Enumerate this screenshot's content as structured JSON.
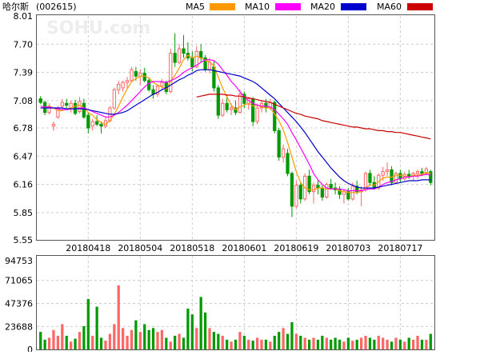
{
  "header": {
    "stock_name": "哈尔斯",
    "stock_code": "(002615)",
    "watermark": "SOHU.com"
  },
  "legend": [
    {
      "label": "MA5",
      "color": "#ff9900"
    },
    {
      "label": "MA10",
      "color": "#ff00ff"
    },
    {
      "label": "MA20",
      "color": "#0000cc"
    },
    {
      "label": "MA60",
      "color": "#cc0000"
    }
  ],
  "colors": {
    "up": "#ff6666",
    "down": "#009900",
    "grid": "#cccccc",
    "frame": "#555555"
  },
  "chart_data": [
    {
      "type": "candlestick",
      "y_ticks": [
        "8.01",
        "7.70",
        "7.39",
        "7.08",
        "6.78",
        "6.47",
        "6.16",
        "5.85",
        "5.55"
      ],
      "ylim": [
        5.55,
        8.01
      ],
      "x_ticks": [
        {
          "label": "20180418",
          "index": 11
        },
        {
          "label": "20180504",
          "index": 23
        },
        {
          "label": "20180518",
          "index": 35
        },
        {
          "label": "20180601",
          "index": 47
        },
        {
          "label": "20180619",
          "index": 59
        },
        {
          "label": "20180703",
          "index": 71
        },
        {
          "label": "20180717",
          "index": 83
        }
      ],
      "ohlc": [
        [
          7.1,
          7.13,
          7.04,
          7.06
        ],
        [
          7.06,
          7.08,
          6.92,
          6.95
        ],
        [
          6.95,
          7.05,
          6.93,
          7.02
        ],
        [
          6.8,
          6.85,
          6.75,
          6.82
        ],
        [
          6.9,
          7.02,
          6.88,
          7.0
        ],
        [
          7.02,
          7.1,
          6.98,
          7.06
        ],
        [
          7.05,
          7.1,
          7.0,
          7.03
        ],
        [
          7.0,
          7.08,
          6.95,
          7.05
        ],
        [
          7.05,
          7.09,
          6.92,
          6.94
        ],
        [
          6.96,
          7.12,
          6.94,
          7.07
        ],
        [
          7.05,
          7.1,
          6.88,
          6.9
        ],
        [
          6.92,
          6.95,
          6.72,
          6.78
        ],
        [
          6.8,
          6.88,
          6.75,
          6.85
        ],
        [
          6.85,
          6.92,
          6.8,
          6.82
        ],
        [
          6.82,
          6.85,
          6.72,
          6.8
        ],
        [
          6.8,
          6.9,
          6.78,
          6.86
        ],
        [
          6.86,
          7.02,
          6.84,
          7.0
        ],
        [
          7.0,
          7.22,
          6.98,
          7.2
        ],
        [
          7.2,
          7.3,
          7.15,
          7.26
        ],
        [
          7.22,
          7.3,
          7.18,
          7.28
        ],
        [
          7.28,
          7.34,
          7.22,
          7.3
        ],
        [
          7.3,
          7.45,
          7.28,
          7.42
        ],
        [
          7.4,
          7.45,
          7.3,
          7.35
        ],
        [
          7.35,
          7.42,
          7.25,
          7.38
        ],
        [
          7.38,
          7.44,
          7.28,
          7.3
        ],
        [
          7.3,
          7.33,
          7.18,
          7.2
        ],
        [
          7.2,
          7.25,
          7.1,
          7.15
        ],
        [
          7.15,
          7.26,
          7.12,
          7.24
        ],
        [
          7.24,
          7.32,
          7.2,
          7.28
        ],
        [
          7.28,
          7.3,
          7.15,
          7.18
        ],
        [
          7.18,
          7.65,
          7.16,
          7.6
        ],
        [
          7.6,
          7.82,
          7.45,
          7.5
        ],
        [
          7.5,
          7.7,
          7.48,
          7.65
        ],
        [
          7.65,
          7.8,
          7.55,
          7.6
        ],
        [
          7.6,
          7.72,
          7.52,
          7.55
        ],
        [
          7.55,
          7.62,
          7.4,
          7.45
        ],
        [
          7.45,
          7.68,
          7.44,
          7.62
        ],
        [
          7.62,
          7.7,
          7.5,
          7.55
        ],
        [
          7.55,
          7.58,
          7.4,
          7.42
        ],
        [
          7.42,
          7.55,
          7.38,
          7.5
        ],
        [
          7.45,
          7.52,
          7.18,
          7.22
        ],
        [
          7.22,
          7.25,
          6.88,
          6.92
        ],
        [
          6.92,
          7.1,
          6.9,
          7.05
        ],
        [
          7.05,
          7.15,
          6.95,
          6.98
        ],
        [
          6.98,
          7.05,
          6.92,
          7.0
        ],
        [
          7.0,
          7.08,
          6.92,
          6.95
        ],
        [
          6.95,
          7.2,
          6.94,
          7.15
        ],
        [
          7.15,
          7.18,
          7.0,
          7.05
        ],
        [
          7.05,
          7.12,
          6.98,
          7.1
        ],
        [
          7.1,
          7.12,
          6.8,
          6.85
        ],
        [
          6.85,
          7.05,
          6.82,
          7.0
        ],
        [
          7.0,
          7.08,
          6.95,
          7.05
        ],
        [
          7.05,
          7.1,
          6.95,
          7.0
        ],
        [
          7.0,
          7.1,
          6.98,
          7.06
        ],
        [
          7.06,
          7.08,
          6.72,
          6.75
        ],
        [
          6.75,
          6.78,
          6.42,
          6.46
        ],
        [
          6.46,
          6.6,
          6.4,
          6.55
        ],
        [
          6.5,
          6.55,
          6.25,
          6.28
        ],
        [
          6.28,
          6.3,
          5.8,
          5.92
        ],
        [
          5.92,
          6.2,
          5.9,
          6.15
        ],
        [
          6.15,
          6.18,
          5.95,
          6.0
        ],
        [
          6.0,
          6.28,
          5.98,
          6.25
        ],
        [
          6.25,
          6.32,
          6.05,
          6.08
        ],
        [
          6.08,
          6.18,
          5.95,
          6.15
        ],
        [
          6.15,
          6.2,
          6.05,
          6.12
        ],
        [
          6.12,
          6.15,
          5.98,
          6.02
        ],
        [
          6.02,
          6.18,
          6.0,
          6.16
        ],
        [
          6.16,
          6.22,
          6.1,
          6.12
        ],
        [
          6.12,
          6.18,
          6.05,
          6.1
        ],
        [
          6.1,
          6.14,
          6.0,
          6.05
        ],
        [
          6.05,
          6.1,
          5.95,
          6.08
        ],
        [
          6.08,
          6.12,
          5.98,
          6.0
        ],
        [
          6.0,
          6.18,
          5.98,
          6.14
        ],
        [
          6.14,
          6.2,
          6.05,
          6.08
        ],
        [
          6.08,
          6.14,
          5.92,
          6.1
        ],
        [
          6.1,
          6.3,
          6.08,
          6.28
        ],
        [
          6.28,
          6.32,
          6.15,
          6.18
        ],
        [
          6.18,
          6.25,
          6.1,
          6.12
        ],
        [
          6.12,
          6.28,
          6.1,
          6.26
        ],
        [
          6.26,
          6.35,
          6.2,
          6.3
        ],
        [
          6.3,
          6.4,
          6.25,
          6.32
        ],
        [
          6.32,
          6.36,
          6.15,
          6.18
        ],
        [
          6.18,
          6.3,
          6.16,
          6.28
        ],
        [
          6.28,
          6.32,
          6.18,
          6.22
        ],
        [
          6.22,
          6.3,
          6.2,
          6.27
        ],
        [
          6.27,
          6.32,
          6.22,
          6.25
        ],
        [
          6.25,
          6.3,
          6.2,
          6.28
        ],
        [
          6.28,
          6.32,
          6.22,
          6.3
        ],
        [
          6.3,
          6.34,
          6.25,
          6.28
        ],
        [
          6.28,
          6.35,
          6.26,
          6.33
        ],
        [
          6.3,
          6.32,
          6.15,
          6.18
        ]
      ],
      "ma5": [
        7.0,
        7.0,
        7.02,
        7.0,
        6.97,
        6.97,
        6.99,
        7.0,
        7.02,
        7.03,
        7.0,
        6.95,
        6.92,
        6.87,
        6.84,
        6.82,
        6.86,
        6.93,
        7.02,
        7.12,
        7.21,
        7.29,
        7.32,
        7.35,
        7.35,
        7.33,
        7.28,
        7.25,
        7.23,
        7.21,
        7.29,
        7.36,
        7.44,
        7.53,
        7.58,
        7.55,
        7.57,
        7.55,
        7.52,
        7.51,
        7.46,
        7.34,
        7.22,
        7.12,
        7.03,
        6.98,
        7.01,
        7.03,
        7.05,
        7.02,
        7.03,
        7.01,
        7.0,
        7.0,
        6.93,
        6.86,
        6.76,
        6.62,
        6.46,
        6.3,
        6.18,
        6.12,
        6.1,
        6.1,
        6.12,
        6.12,
        6.11,
        6.11,
        6.11,
        6.09,
        6.08,
        6.07,
        6.07,
        6.07,
        6.08,
        6.12,
        6.15,
        6.15,
        6.19,
        6.23,
        6.24,
        6.24,
        6.26,
        6.26,
        6.25,
        6.24,
        6.26,
        6.26,
        6.27,
        6.29,
        6.28
      ],
      "ma10": [
        7.02,
        7.01,
        7.01,
        7.0,
        6.99,
        6.98,
        6.98,
        6.99,
        6.99,
        7.0,
        7.0,
        6.98,
        6.96,
        6.94,
        6.92,
        6.9,
        6.9,
        6.92,
        6.95,
        6.99,
        7.03,
        7.08,
        7.13,
        7.18,
        7.23,
        7.27,
        7.29,
        7.29,
        7.29,
        7.28,
        7.3,
        7.32,
        7.35,
        7.39,
        7.42,
        7.44,
        7.47,
        7.5,
        7.53,
        7.53,
        7.52,
        7.48,
        7.42,
        7.36,
        7.29,
        7.24,
        7.18,
        7.12,
        7.08,
        7.05,
        7.03,
        7.02,
        7.02,
        7.01,
        6.98,
        6.93,
        6.88,
        6.82,
        6.73,
        6.65,
        6.56,
        6.47,
        6.38,
        6.28,
        6.21,
        6.16,
        6.12,
        6.11,
        6.11,
        6.11,
        6.1,
        6.09,
        6.09,
        6.09,
        6.09,
        6.1,
        6.11,
        6.11,
        6.13,
        6.16,
        6.18,
        6.19,
        6.21,
        6.22,
        6.24,
        6.24,
        6.25,
        6.25,
        6.26,
        6.27,
        6.26
      ],
      "ma20": [
        7.0,
        7.0,
        7.0,
        7.0,
        7.0,
        7.0,
        6.99,
        6.99,
        6.99,
        6.99,
        6.99,
        6.98,
        6.97,
        6.96,
        6.95,
        6.94,
        6.93,
        6.93,
        6.94,
        6.95,
        6.97,
        7.0,
        7.03,
        7.06,
        7.09,
        7.12,
        7.15,
        7.17,
        7.2,
        7.22,
        7.25,
        7.28,
        7.31,
        7.33,
        7.36,
        7.38,
        7.41,
        7.42,
        7.42,
        7.42,
        7.41,
        7.4,
        7.39,
        7.38,
        7.37,
        7.36,
        7.35,
        7.33,
        7.31,
        7.29,
        7.26,
        7.22,
        7.18,
        7.14,
        7.1,
        7.05,
        7.0,
        6.95,
        6.9,
        6.85,
        6.79,
        6.73,
        6.66,
        6.59,
        6.52,
        6.46,
        6.4,
        6.34,
        6.29,
        6.24,
        6.2,
        6.17,
        6.15,
        6.13,
        6.12,
        6.12,
        6.12,
        6.12,
        6.13,
        6.14,
        6.15,
        6.16,
        6.17,
        6.18,
        6.19,
        6.2,
        6.2,
        6.2,
        6.21,
        6.21,
        6.21
      ],
      "ma60": [
        null,
        null,
        null,
        null,
        null,
        null,
        null,
        null,
        null,
        null,
        null,
        null,
        null,
        null,
        null,
        null,
        null,
        null,
        null,
        null,
        null,
        null,
        null,
        null,
        null,
        null,
        null,
        null,
        null,
        null,
        null,
        null,
        null,
        null,
        null,
        null,
        7.12,
        7.13,
        7.14,
        7.15,
        7.15,
        7.15,
        7.15,
        7.14,
        7.14,
        7.13,
        7.13,
        7.12,
        7.11,
        7.1,
        7.09,
        7.08,
        7.07,
        7.06,
        7.04,
        7.02,
        7.0,
        6.98,
        6.96,
        6.94,
        6.93,
        6.91,
        6.9,
        6.89,
        6.88,
        6.86,
        6.85,
        6.84,
        6.83,
        6.82,
        6.81,
        6.8,
        6.79,
        6.79,
        6.78,
        6.77,
        6.77,
        6.76,
        6.75,
        6.75,
        6.74,
        6.74,
        6.73,
        6.73,
        6.72,
        6.71,
        6.7,
        6.69,
        6.68,
        6.67,
        6.66
      ]
    },
    {
      "type": "bar",
      "y_ticks": [
        "94753",
        "71065",
        "47376",
        "23688",
        "0"
      ],
      "ylim": [
        0,
        94753
      ],
      "volume": [
        18000,
        10000,
        12000,
        20000,
        14000,
        26000,
        14000,
        8000,
        11000,
        18000,
        24000,
        52000,
        14000,
        44000,
        12000,
        9000,
        16000,
        26000,
        66000,
        22000,
        14000,
        20000,
        30000,
        18000,
        26000,
        20000,
        22000,
        18000,
        20000,
        12000,
        8000,
        14000,
        16000,
        12000,
        42000,
        36000,
        22000,
        54000,
        38000,
        22000,
        18000,
        16000,
        14000,
        10000,
        8000,
        10000,
        18000,
        14000,
        10000,
        9000,
        12000,
        10000,
        10000,
        8000,
        14000,
        18000,
        22000,
        16000,
        28000,
        16000,
        14000,
        12000,
        10000,
        12000,
        10000,
        14000,
        12000,
        10000,
        12000,
        10000,
        8000,
        12000,
        9000,
        10000,
        12000,
        14000,
        12000,
        10000,
        14000,
        12000,
        10000,
        8000,
        12000,
        10000,
        8000,
        12000,
        10000,
        14000,
        10000,
        10000,
        16000
      ]
    }
  ]
}
